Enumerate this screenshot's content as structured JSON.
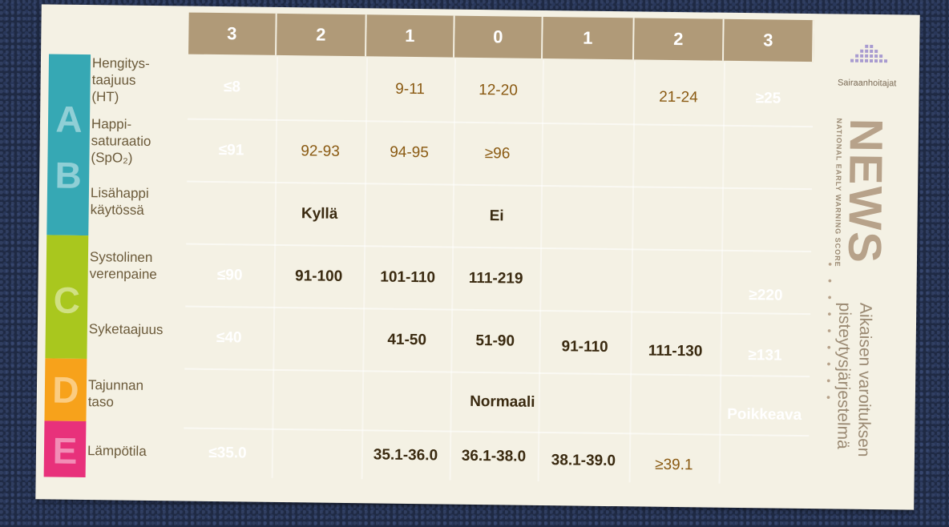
{
  "scores": [
    "3",
    "2",
    "1",
    "0",
    "1",
    "2",
    "3"
  ],
  "groups": [
    {
      "letter": "A",
      "color": "#36a8b4"
    },
    {
      "letter": "B",
      "color": "#36a8b4"
    },
    {
      "letter": "C",
      "color": "#a9c71e"
    },
    {
      "letter": "D",
      "color": "#f7a21b"
    },
    {
      "letter": "E",
      "color": "#e8317b"
    }
  ],
  "parameters": [
    {
      "label_lines": [
        "Hengitys-",
        "taajuus",
        "(HT)"
      ],
      "cells": [
        "≤8",
        "",
        "9-11",
        "12-20",
        "",
        "21-24",
        "≥25"
      ]
    },
    {
      "label_lines": [
        "Happi-",
        "saturaatio",
        "(SpO₂)"
      ],
      "cells": [
        "≤91",
        "92-93",
        "94-95",
        "≥96",
        "",
        "",
        ""
      ]
    },
    {
      "label_lines": [
        "Lisähappi",
        "käytössä"
      ],
      "cells": [
        "",
        "Kyllä",
        "",
        "Ei",
        "",
        "",
        ""
      ]
    },
    {
      "label_lines": [
        "Systolinen",
        "verenpaine"
      ],
      "cells": [
        "≤90",
        "91-100",
        "101-110",
        "111-219",
        "",
        "",
        "≥220"
      ]
    },
    {
      "label_lines": [
        "Syketaajuus"
      ],
      "cells": [
        "≤40",
        "",
        "41-50",
        "51-90",
        "91-110",
        "111-130",
        "≥131"
      ]
    },
    {
      "label_lines": [
        "Tajunnan",
        "taso"
      ],
      "cells": [
        "",
        "",
        "",
        "Normaali",
        "",
        "",
        "Poikkeava"
      ]
    },
    {
      "label_lines": [
        "Lämpötila"
      ],
      "cells": [
        "≤35.0",
        "",
        "35.1-36.0",
        "36.1-38.0",
        "38.1-39.0",
        "≥39.1",
        ""
      ]
    }
  ],
  "brand": {
    "org": "Sairaanhoitajat",
    "title": "NEWS",
    "subtitle": "NATIONAL EARLY WARNING SCORE",
    "description_line1": "Aikaisen varoituksen",
    "description_line2": "pisteytysjärjestelmä"
  },
  "colors": {
    "red": "#ee2c24",
    "orange": "#f6811f",
    "yellow": "#f4e31a",
    "green": "#c9dc1a",
    "header": "#b09a78"
  }
}
